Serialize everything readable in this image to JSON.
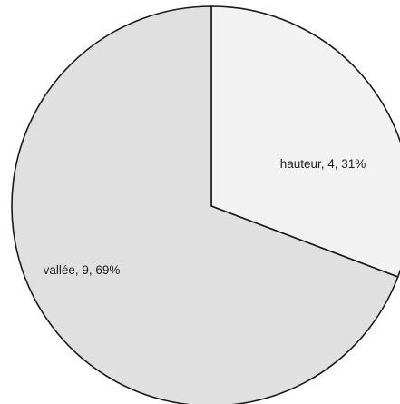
{
  "chart_data": {
    "type": "pie",
    "categories": [
      "hauteur",
      "vallée"
    ],
    "values": [
      4,
      9
    ],
    "percent_labels": [
      "31%",
      "69%"
    ],
    "data_labels": [
      "hauteur, 4, 31%",
      "vallée, 9, 69%"
    ],
    "colors": [
      "#f2f2f2",
      "#e0e0e0"
    ],
    "start_angle": "top (12 o'clock), clockwise",
    "legend": "none"
  }
}
